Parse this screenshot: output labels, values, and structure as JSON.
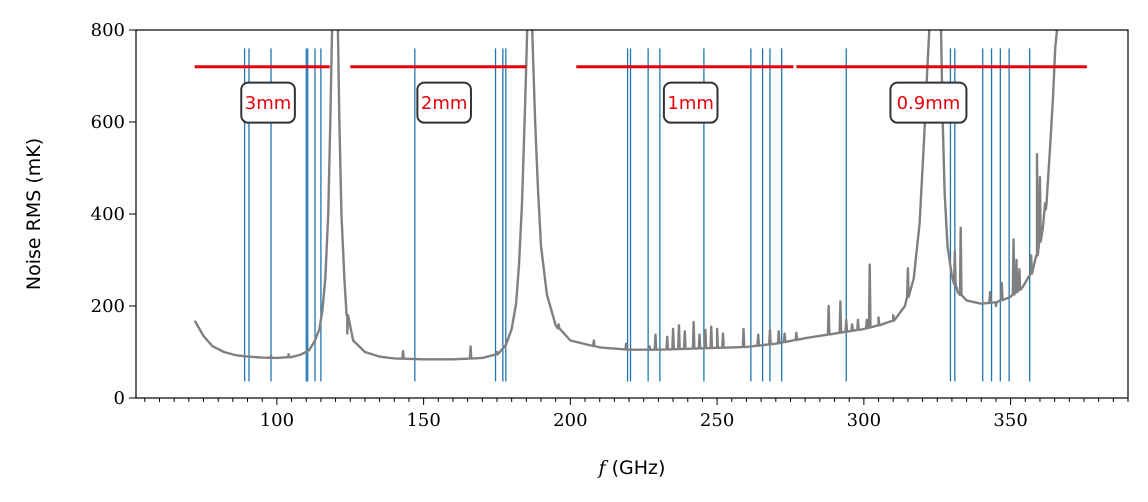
{
  "chart_data": {
    "type": "line",
    "xlabel": "f (GHz)",
    "ylabel": "Noise RMS (mK)",
    "xlim": [
      52,
      390
    ],
    "ylim": [
      0,
      800
    ],
    "x_major_ticks": [
      100,
      150,
      200,
      250,
      300,
      350
    ],
    "x_minor_step": 5,
    "y_major_ticks": [
      0,
      200,
      400,
      600,
      800
    ],
    "grid": false,
    "colors": {
      "curve": "#808080",
      "lines": "#1f77b4",
      "bands": "#e8000b",
      "label_box": "#333333"
    },
    "series": [
      {
        "role": "noise-curve-segment",
        "x": [
          72,
          75,
          78,
          82,
          86,
          90,
          95,
          100,
          105,
          108,
          111,
          113,
          114.5,
          115.5,
          116.5,
          117.5,
          118.2,
          118.8
        ],
        "y": [
          168,
          135,
          113,
          100,
          93,
          90,
          88,
          87,
          89,
          94,
          104,
          125,
          150,
          190,
          260,
          400,
          600,
          800
        ],
        "spikes": [
          [
            98,
            92
          ],
          [
            104,
            95
          ]
        ]
      },
      {
        "role": "noise-curve-segment",
        "x": [
          120.8,
          121.3,
          122,
          123,
          124,
          126,
          130,
          135,
          140,
          150,
          160,
          170,
          175,
          178,
          180,
          181.5,
          182.5,
          183.5,
          184.5,
          185.3
        ],
        "y": [
          800,
          600,
          400,
          260,
          180,
          125,
          100,
          90,
          86,
          84,
          84,
          87,
          95,
          115,
          150,
          205,
          290,
          420,
          620,
          800
        ],
        "spikes": [
          [
            124,
            140
          ],
          [
            143,
            102
          ],
          [
            166,
            112
          ],
          [
            175,
            100
          ]
        ]
      },
      {
        "role": "noise-curve-segment",
        "x": [
          187,
          188,
          189,
          190,
          192,
          195,
          200,
          210,
          220,
          230,
          240,
          250,
          260,
          270,
          280,
          290,
          300,
          305,
          310,
          314,
          317,
          319,
          320.5,
          321.5,
          322.3
        ],
        "y": [
          800,
          600,
          450,
          330,
          225,
          158,
          125,
          110,
          105,
          105,
          107,
          109,
          111,
          118,
          130,
          140,
          150,
          158,
          168,
          200,
          260,
          380,
          560,
          700,
          800
        ],
        "spikes": [
          [
            196,
            160
          ],
          [
            208,
            125
          ],
          [
            219,
            118
          ],
          [
            227,
            112
          ],
          [
            229,
            138
          ],
          [
            233,
            133
          ],
          [
            235,
            150
          ],
          [
            237,
            158
          ],
          [
            239,
            145
          ],
          [
            242,
            165
          ],
          [
            244,
            138
          ],
          [
            246,
            148
          ],
          [
            248,
            155
          ],
          [
            250,
            150
          ],
          [
            252,
            140
          ],
          [
            259,
            150
          ],
          [
            264,
            138
          ],
          [
            268,
            148
          ],
          [
            271,
            145
          ],
          [
            273,
            140
          ],
          [
            277,
            142
          ],
          [
            288,
            200
          ],
          [
            292,
            210
          ],
          [
            294,
            170
          ],
          [
            296,
            160
          ],
          [
            298,
            170
          ],
          [
            301,
            170
          ],
          [
            302,
            290
          ],
          [
            305,
            175
          ],
          [
            310,
            180
          ],
          [
            315,
            282
          ]
        ]
      },
      {
        "role": "noise-curve-segment",
        "x": [
          326.3,
          326.8,
          327.5,
          328.5,
          330,
          332,
          335,
          340,
          345,
          350,
          354,
          357,
          359,
          361,
          362.5,
          363.5,
          364.5,
          365.2,
          365.8
        ],
        "y": [
          800,
          620,
          450,
          330,
          265,
          230,
          212,
          205,
          208,
          220,
          240,
          270,
          310,
          370,
          450,
          550,
          660,
          760,
          800
        ],
        "spikes": [
          [
            331,
            320
          ],
          [
            333,
            370
          ],
          [
            343,
            230
          ],
          [
            345,
            200
          ],
          [
            347,
            250
          ],
          [
            351,
            345
          ],
          [
            352,
            300
          ],
          [
            353,
            280
          ],
          [
            357,
            310
          ],
          [
            359,
            530
          ],
          [
            360,
            480
          ],
          [
            362,
            410
          ]
        ]
      }
    ],
    "vertical_lines_x": [
      89,
      90.5,
      98,
      110,
      110.5,
      113,
      115,
      147,
      174.5,
      177,
      178,
      219.5,
      220.5,
      226.5,
      230.5,
      245.5,
      261.5,
      265.5,
      268,
      272,
      294,
      329.5,
      331,
      340.5,
      343.5,
      346.5,
      349.5,
      356.5
    ],
    "bands": [
      {
        "label": "3mm",
        "x_start": 72,
        "x_end": 118,
        "y": 720
      },
      {
        "label": "2mm",
        "x_start": 125,
        "x_end": 185,
        "y": 720
      },
      {
        "label": "1mm",
        "x_start": 202,
        "x_end": 276,
        "y": 720
      },
      {
        "label": "0.9mm",
        "x_start": 277,
        "x_end": 376,
        "y": 720
      }
    ],
    "band_label_positions": [
      {
        "x": 97,
        "y": 642
      },
      {
        "x": 157,
        "y": 642
      },
      {
        "x": 241,
        "y": 642
      },
      {
        "x": 322,
        "y": 642
      }
    ]
  }
}
